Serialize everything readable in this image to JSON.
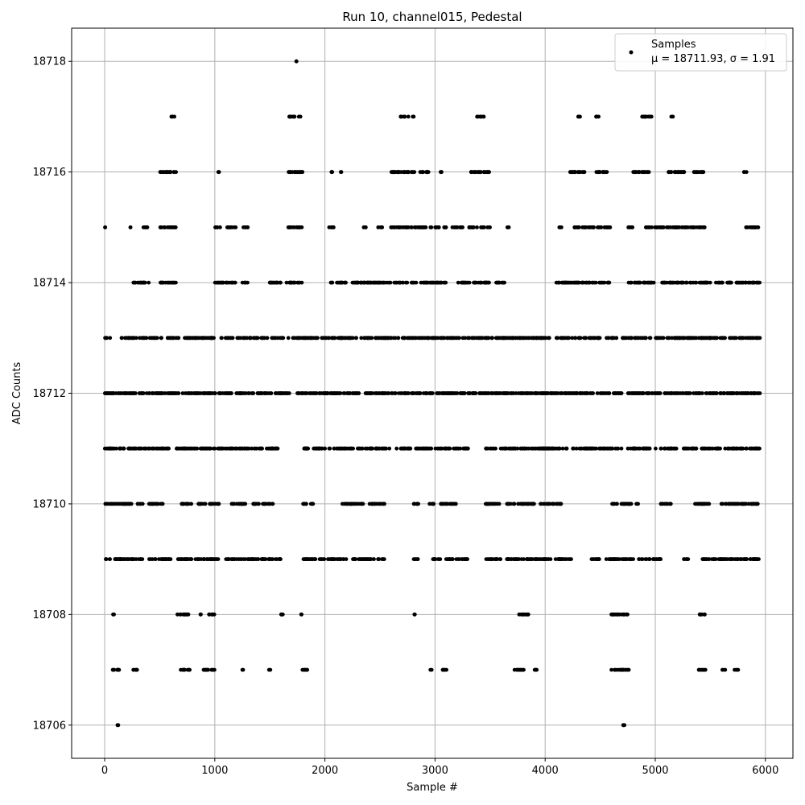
{
  "chart_data": {
    "type": "scatter",
    "title": "Run 10, channel015, Pedestal",
    "xlabel": "Sample #",
    "ylabel": "ADC Counts",
    "xlim": [
      -300,
      6250
    ],
    "ylim": [
      18705.4,
      18718.6
    ],
    "xticks": [
      0,
      1000,
      2000,
      3000,
      4000,
      5000,
      6000
    ],
    "yticks": [
      18706,
      18708,
      18710,
      18712,
      18714,
      18716,
      18718
    ],
    "grid": true,
    "legend_position": "top-right",
    "marker_color": "#000000",
    "series": [
      {
        "name": "Samples",
        "stats_label": "μ = 18711.93, σ = 1.91",
        "n_samples": 6000,
        "y_levels": [
          18706,
          18707,
          18708,
          18709,
          18710,
          18711,
          18712,
          18713,
          18714,
          18715,
          18716,
          18717,
          18718
        ],
        "level_ranges": [
          {
            "y": 18706,
            "ranges": [
              [
                110,
                130
              ],
              [
                4690,
                4720
              ]
            ]
          },
          {
            "y": 18707,
            "ranges": [
              [
                60,
                140
              ],
              [
                250,
                300
              ],
              [
                680,
                780
              ],
              [
                880,
                1000
              ],
              [
                1240,
                1260
              ],
              [
                1490,
                1510
              ],
              [
                1790,
                1860
              ],
              [
                2950,
                2970
              ],
              [
                3070,
                3120
              ],
              [
                3720,
                3820
              ],
              [
                3890,
                3940
              ],
              [
                4600,
                4760
              ],
              [
                5390,
                5460
              ],
              [
                5600,
                5640
              ],
              [
                5720,
                5760
              ]
            ]
          },
          {
            "y": 18708,
            "ranges": [
              [
                70,
                90
              ],
              [
                660,
                760
              ],
              [
                860,
                880
              ],
              [
                940,
                1000
              ],
              [
                1590,
                1630
              ],
              [
                1780,
                1800
              ],
              [
                2810,
                2830
              ],
              [
                3750,
                3850
              ],
              [
                4600,
                4760
              ],
              [
                5390,
                5450
              ]
            ]
          },
          {
            "y": 18709,
            "ranges": [
              [
                0,
                350
              ],
              [
                400,
                600
              ],
              [
                650,
                1050
              ],
              [
                1100,
                1600
              ],
              [
                1800,
                2200
              ],
              [
                2250,
                2550
              ],
              [
                2800,
                2850
              ],
              [
                2950,
                3050
              ],
              [
                3100,
                3300
              ],
              [
                3450,
                3600
              ],
              [
                3650,
                4250
              ],
              [
                4400,
                4500
              ],
              [
                4550,
                4800
              ],
              [
                4850,
                5050
              ],
              [
                5250,
                5300
              ],
              [
                5400,
                5950
              ]
            ]
          },
          {
            "y": 18710,
            "ranges": [
              [
                0,
                250
              ],
              [
                300,
                350
              ],
              [
                400,
                550
              ],
              [
                680,
                800
              ],
              [
                850,
                1050
              ],
              [
                1150,
                1300
              ],
              [
                1350,
                1550
              ],
              [
                1800,
                1900
              ],
              [
                2150,
                2350
              ],
              [
                2400,
                2550
              ],
              [
                2800,
                2850
              ],
              [
                2950,
                3000
              ],
              [
                3050,
                3200
              ],
              [
                3450,
                3600
              ],
              [
                3650,
                3900
              ],
              [
                3950,
                4150
              ],
              [
                4600,
                4850
              ],
              [
                5050,
                5150
              ],
              [
                5350,
                5500
              ],
              [
                5600,
                5950
              ]
            ]
          },
          {
            "y": 18711,
            "ranges": [
              [
                0,
                600
              ],
              [
                650,
                1600
              ],
              [
                1800,
                2600
              ],
              [
                2650,
                3300
              ],
              [
                3450,
                4200
              ],
              [
                4250,
                4700
              ],
              [
                4750,
                5200
              ],
              [
                5250,
                5950
              ]
            ]
          },
          {
            "y": 18712,
            "ranges": [
              [
                0,
                1700
              ],
              [
                1750,
                4700
              ],
              [
                4750,
                5950
              ]
            ]
          },
          {
            "y": 18713,
            "ranges": [
              [
                0,
                50
              ],
              [
                150,
                1000
              ],
              [
                1050,
                4050
              ],
              [
                4100,
                4500
              ],
              [
                4550,
                4650
              ],
              [
                4700,
                5950
              ]
            ]
          },
          {
            "y": 18714,
            "ranges": [
              [
                250,
                400
              ],
              [
                500,
                650
              ],
              [
                1000,
                1200
              ],
              [
                1250,
                1300
              ],
              [
                1450,
                1600
              ],
              [
                1650,
                1800
              ],
              [
                2050,
                2200
              ],
              [
                2250,
                3100
              ],
              [
                3200,
                3500
              ],
              [
                3550,
                3650
              ],
              [
                4100,
                4600
              ],
              [
                4750,
                5000
              ],
              [
                5050,
                5500
              ],
              [
                5550,
                5950
              ]
            ]
          },
          {
            "y": 18715,
            "ranges": [
              [
                0,
                20
              ],
              [
                220,
                240
              ],
              [
                350,
                400
              ],
              [
                500,
                650
              ],
              [
                1000,
                1050
              ],
              [
                1100,
                1200
              ],
              [
                1250,
                1300
              ],
              [
                1650,
                1800
              ],
              [
                2030,
                2080
              ],
              [
                2350,
                2380
              ],
              [
                2480,
                2520
              ],
              [
                2600,
                3100
              ],
              [
                3150,
                3250
              ],
              [
                3300,
                3500
              ],
              [
                3650,
                3680
              ],
              [
                4120,
                4150
              ],
              [
                4250,
                4600
              ],
              [
                4750,
                4800
              ],
              [
                4900,
                5450
              ],
              [
                5800,
                5950
              ]
            ]
          },
          {
            "y": 18716,
            "ranges": [
              [
                500,
                650
              ],
              [
                1020,
                1040
              ],
              [
                1650,
                1800
              ],
              [
                2050,
                2080
              ],
              [
                2130,
                2150
              ],
              [
                2600,
                2950
              ],
              [
                3040,
                3070
              ],
              [
                3320,
                3500
              ],
              [
                4220,
                4360
              ],
              [
                4450,
                4570
              ],
              [
                4800,
                4950
              ],
              [
                5100,
                5300
              ],
              [
                5350,
                5450
              ],
              [
                5800,
                5830
              ]
            ]
          },
          {
            "y": 18717,
            "ranges": [
              [
                600,
                640
              ],
              [
                1670,
                1790
              ],
              [
                2680,
                2760
              ],
              [
                2790,
                2810
              ],
              [
                3370,
                3450
              ],
              [
                4280,
                4320
              ],
              [
                4460,
                4500
              ],
              [
                4880,
                5000
              ],
              [
                5140,
                5160
              ]
            ]
          },
          {
            "y": 18718,
            "ranges": [
              [
                1740,
                1760
              ]
            ]
          }
        ]
      }
    ]
  }
}
